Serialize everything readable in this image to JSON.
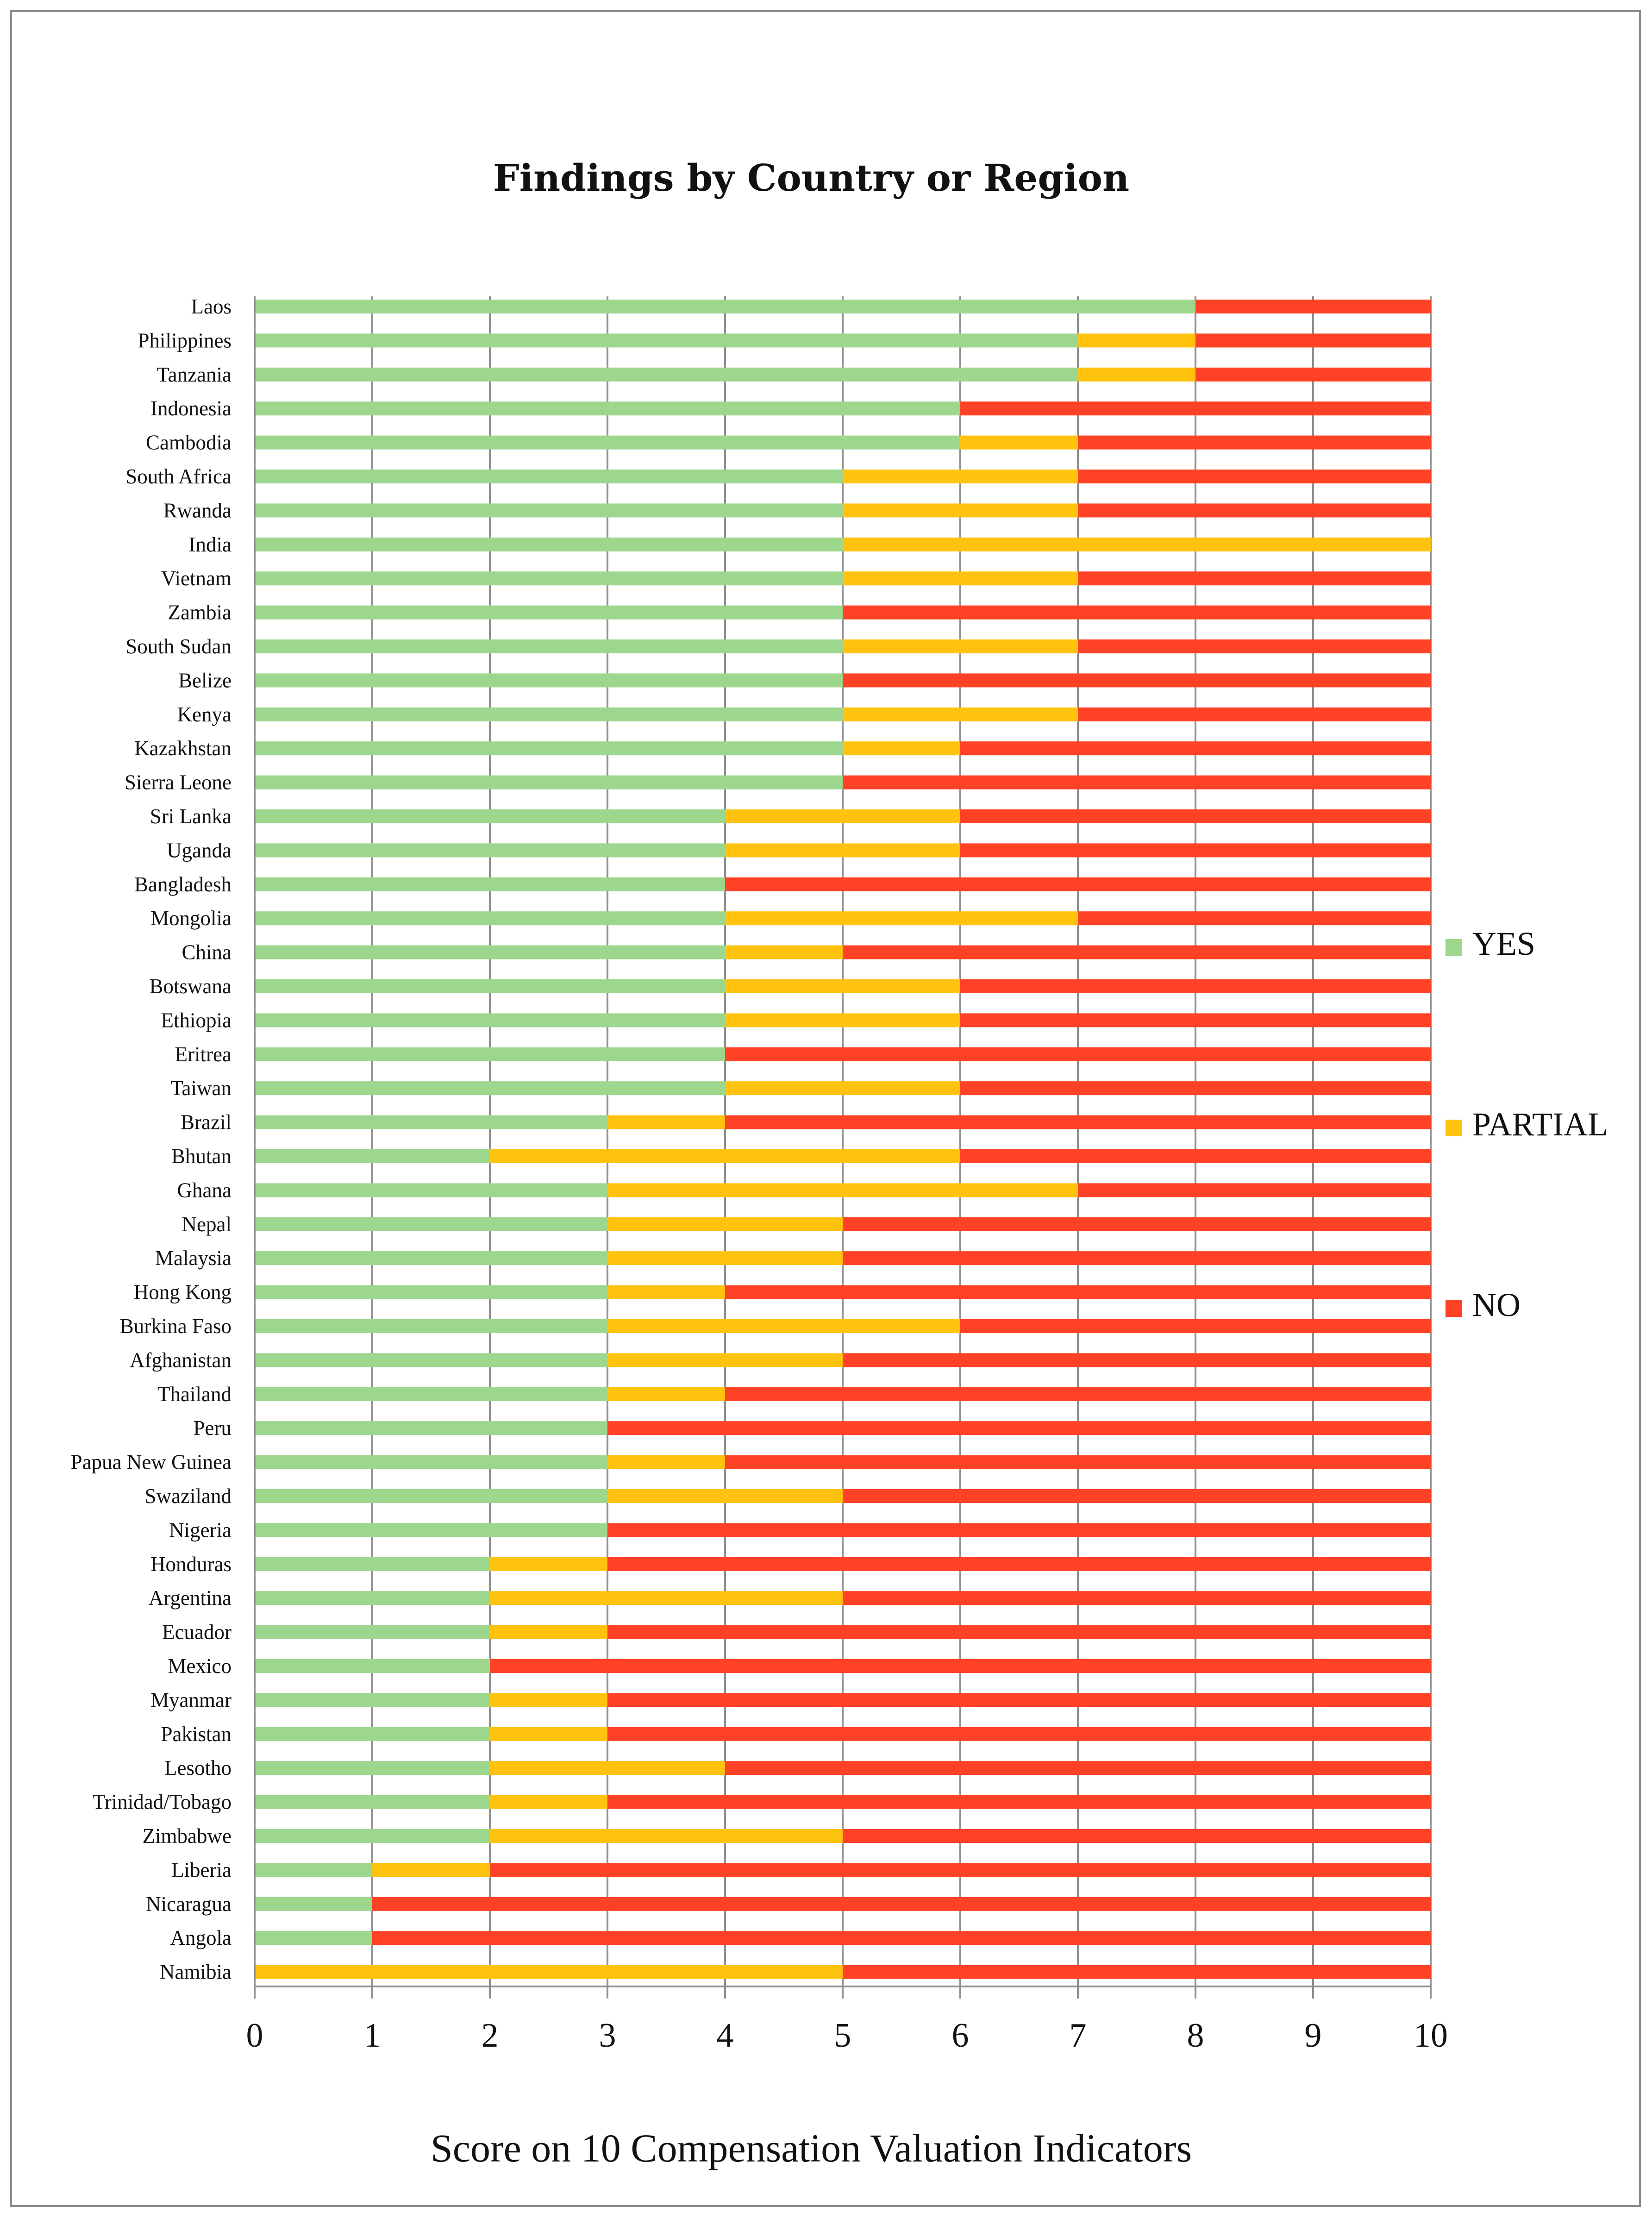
{
  "colors": {
    "yes": "#9dd68d",
    "partial": "#ffc20e",
    "no": "#ff4125",
    "grid": "#8f8f8f",
    "axis": "#8f8f8f"
  },
  "chart_data": {
    "type": "bar",
    "orientation": "horizontal",
    "stacked": true,
    "title": "Findings by Country or Region",
    "xlabel": "Score on 10 Compensation Valuation Indicators",
    "ylabel": "",
    "xlim": [
      0,
      10
    ],
    "xticks": [
      "0",
      "1",
      "2",
      "3",
      "4",
      "5",
      "6",
      "7",
      "8",
      "9",
      "10"
    ],
    "grid": "vertical",
    "legend_position": "right",
    "categories": [
      "Laos",
      "Philippines",
      "Tanzania",
      "Indonesia",
      "Cambodia",
      "South Africa",
      "Rwanda",
      "India",
      "Vietnam",
      "Zambia",
      "South Sudan",
      "Belize",
      "Kenya",
      "Kazakhstan",
      "Sierra Leone",
      "Sri Lanka",
      "Uganda",
      "Bangladesh",
      "Mongolia",
      "China",
      "Botswana",
      "Ethiopia",
      "Eritrea",
      "Taiwan",
      "Brazil",
      "Bhutan",
      "Ghana",
      "Nepal",
      "Malaysia",
      "Hong Kong",
      "Burkina Faso",
      "Afghanistan",
      "Thailand",
      "Peru",
      "Papua New Guinea",
      "Swaziland",
      "Nigeria",
      "Honduras",
      "Argentina",
      "Ecuador",
      "Mexico",
      "Myanmar",
      "Pakistan",
      "Lesotho",
      "Trinidad/Tobago",
      "Zimbabwe",
      "Liberia",
      "Nicaragua",
      "Angola",
      "Namibia"
    ],
    "series": [
      {
        "name": "YES",
        "values": [
          8,
          7,
          7,
          6,
          6,
          5,
          5,
          5,
          5,
          5,
          5,
          5,
          5,
          5,
          5,
          4,
          4,
          4,
          4,
          4,
          4,
          4,
          4,
          4,
          3,
          2,
          3,
          3,
          3,
          3,
          3,
          3,
          3,
          3,
          3,
          3,
          3,
          2,
          2,
          2,
          2,
          2,
          2,
          2,
          2,
          2,
          1,
          1,
          1,
          0
        ]
      },
      {
        "name": "PARTIAL",
        "values": [
          0,
          1,
          1,
          0,
          1,
          2,
          2,
          5,
          2,
          0,
          2,
          0,
          2,
          1,
          0,
          2,
          2,
          0,
          3,
          1,
          2,
          2,
          0,
          2,
          1,
          4,
          4,
          2,
          2,
          1,
          3,
          2,
          1,
          0,
          1,
          2,
          0,
          1,
          3,
          1,
          0,
          1,
          1,
          2,
          1,
          3,
          1,
          0,
          0,
          5
        ]
      },
      {
        "name": "NO",
        "values": [
          2,
          2,
          2,
          4,
          3,
          3,
          3,
          0,
          3,
          5,
          3,
          5,
          3,
          4,
          5,
          4,
          4,
          6,
          3,
          5,
          4,
          4,
          6,
          4,
          6,
          4,
          3,
          5,
          5,
          6,
          4,
          5,
          6,
          7,
          6,
          5,
          7,
          7,
          5,
          7,
          8,
          7,
          7,
          6,
          7,
          5,
          8,
          9,
          9,
          5
        ]
      }
    ]
  }
}
